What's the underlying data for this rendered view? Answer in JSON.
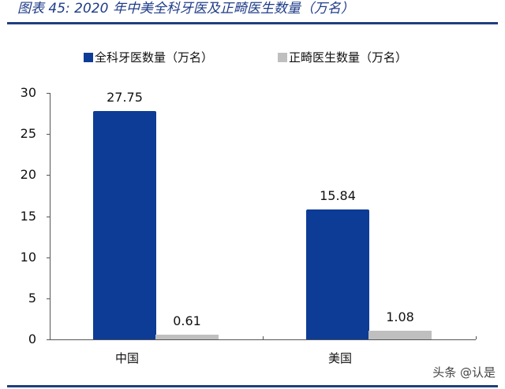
{
  "header": {
    "title": "图表 45:  2020 年中美全科牙医及正畸医生数量（万名）"
  },
  "legend": [
    {
      "label": "全科牙医数量（万名）",
      "color": "#0d3c96"
    },
    {
      "label": "正畸医生数量（万名）",
      "color": "#bfbfbf"
    }
  ],
  "watermark": "头条 @认是",
  "chart_data": {
    "type": "bar",
    "title": "图表 45: 2020 年中美全科牙医及正畸医生数量（万名）",
    "categories": [
      "中国",
      "美国"
    ],
    "series": [
      {
        "name": "全科牙医数量（万名）",
        "color": "#0d3c96",
        "values": [
          27.75,
          15.84
        ]
      },
      {
        "name": "正畸医生数量（万名）",
        "color": "#bfbfbf",
        "values": [
          0.61,
          1.08
        ]
      }
    ],
    "xlabel": "",
    "ylabel": "",
    "ylim": [
      0,
      30
    ],
    "yticks": [
      0,
      5,
      10,
      15,
      20,
      25,
      30
    ],
    "grid": false,
    "legend_position": "top"
  }
}
